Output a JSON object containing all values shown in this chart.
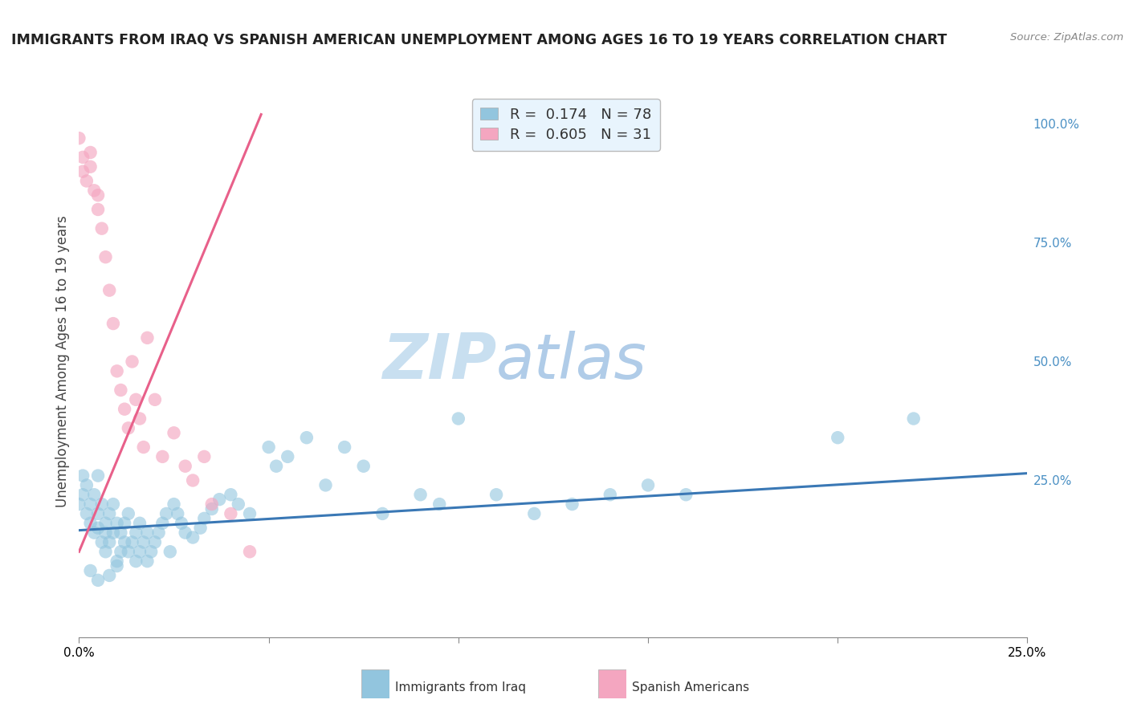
{
  "title": "IMMIGRANTS FROM IRAQ VS SPANISH AMERICAN UNEMPLOYMENT AMONG AGES 16 TO 19 YEARS CORRELATION CHART",
  "source": "Source: ZipAtlas.com",
  "ylabel": "Unemployment Among Ages 16 to 19 years",
  "xlim": [
    0.0,
    0.25
  ],
  "ylim": [
    -0.08,
    1.08
  ],
  "xticks": [
    0.0,
    0.05,
    0.1,
    0.15,
    0.2,
    0.25
  ],
  "xtick_labels": [
    "0.0%",
    "",
    "",
    "",
    "",
    "25.0%"
  ],
  "ytick_values_right": [
    1.0,
    0.75,
    0.5,
    0.25
  ],
  "ytick_labels_right": [
    "100.0%",
    "75.0%",
    "50.0%",
    "25.0%"
  ],
  "blue_color": "#92c5de",
  "pink_color": "#f4a6c0",
  "blue_line_color": "#3a78b5",
  "pink_line_color": "#e8608a",
  "watermark_zip": "ZIP",
  "watermark_atlas": "atlas",
  "legend_box_color": "#e8f4fd",
  "legend_border_color": "#bbbbbb",
  "blue_scatter_x": [
    0.0,
    0.001,
    0.001,
    0.002,
    0.002,
    0.003,
    0.003,
    0.004,
    0.004,
    0.005,
    0.005,
    0.005,
    0.006,
    0.006,
    0.007,
    0.007,
    0.007,
    0.008,
    0.008,
    0.009,
    0.009,
    0.01,
    0.01,
    0.011,
    0.011,
    0.012,
    0.012,
    0.013,
    0.013,
    0.014,
    0.015,
    0.015,
    0.016,
    0.016,
    0.017,
    0.018,
    0.018,
    0.019,
    0.02,
    0.021,
    0.022,
    0.023,
    0.024,
    0.025,
    0.026,
    0.027,
    0.028,
    0.03,
    0.032,
    0.033,
    0.035,
    0.037,
    0.04,
    0.042,
    0.045,
    0.05,
    0.052,
    0.055,
    0.06,
    0.065,
    0.07,
    0.075,
    0.08,
    0.09,
    0.095,
    0.1,
    0.11,
    0.12,
    0.13,
    0.14,
    0.15,
    0.16,
    0.2,
    0.22,
    0.003,
    0.005,
    0.008,
    0.01
  ],
  "blue_scatter_y": [
    0.2,
    0.22,
    0.26,
    0.18,
    0.24,
    0.16,
    0.2,
    0.22,
    0.14,
    0.26,
    0.18,
    0.15,
    0.2,
    0.12,
    0.16,
    0.14,
    0.1,
    0.18,
    0.12,
    0.2,
    0.14,
    0.16,
    0.08,
    0.14,
    0.1,
    0.12,
    0.16,
    0.18,
    0.1,
    0.12,
    0.14,
    0.08,
    0.16,
    0.1,
    0.12,
    0.14,
    0.08,
    0.1,
    0.12,
    0.14,
    0.16,
    0.18,
    0.1,
    0.2,
    0.18,
    0.16,
    0.14,
    0.13,
    0.15,
    0.17,
    0.19,
    0.21,
    0.22,
    0.2,
    0.18,
    0.32,
    0.28,
    0.3,
    0.34,
    0.24,
    0.32,
    0.28,
    0.18,
    0.22,
    0.2,
    0.38,
    0.22,
    0.18,
    0.2,
    0.22,
    0.24,
    0.22,
    0.34,
    0.38,
    0.06,
    0.04,
    0.05,
    0.07
  ],
  "pink_scatter_x": [
    0.0,
    0.001,
    0.001,
    0.002,
    0.003,
    0.003,
    0.004,
    0.005,
    0.005,
    0.006,
    0.007,
    0.008,
    0.009,
    0.01,
    0.011,
    0.012,
    0.013,
    0.014,
    0.015,
    0.016,
    0.017,
    0.018,
    0.02,
    0.022,
    0.025,
    0.028,
    0.03,
    0.033,
    0.035,
    0.04,
    0.045
  ],
  "pink_scatter_y": [
    0.97,
    0.93,
    0.9,
    0.88,
    0.91,
    0.94,
    0.86,
    0.82,
    0.85,
    0.78,
    0.72,
    0.65,
    0.58,
    0.48,
    0.44,
    0.4,
    0.36,
    0.5,
    0.42,
    0.38,
    0.32,
    0.55,
    0.42,
    0.3,
    0.35,
    0.28,
    0.25,
    0.3,
    0.2,
    0.18,
    0.1
  ],
  "blue_line_x": [
    0.0,
    0.25
  ],
  "blue_line_y": [
    0.145,
    0.265
  ],
  "pink_line_x": [
    0.0,
    0.048
  ],
  "pink_line_y": [
    0.1,
    1.02
  ],
  "grid_color": "#cccccc",
  "background_color": "#ffffff",
  "title_fontsize": 12.5,
  "axis_label_fontsize": 12,
  "tick_fontsize": 11,
  "legend_fontsize": 13,
  "watermark_fontsize_zip": 56,
  "watermark_fontsize_atlas": 56,
  "watermark_color_zip": "#c8dff0",
  "watermark_color_atlas": "#b0cce8",
  "bottom_legend_labels": [
    "Immigrants from Iraq",
    "Spanish Americans"
  ]
}
